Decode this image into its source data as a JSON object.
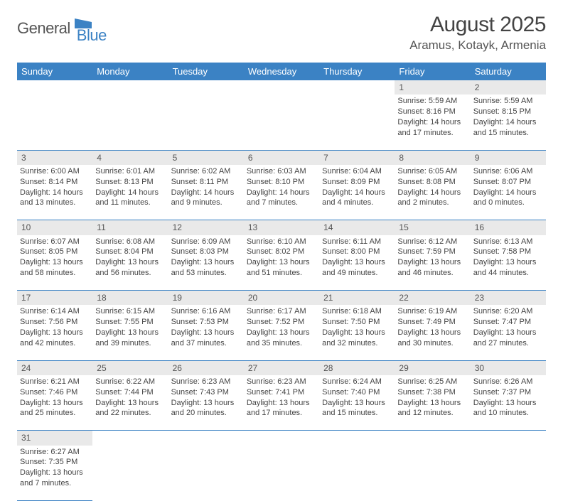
{
  "logo": {
    "general": "General",
    "blue": "Blue"
  },
  "title": "August 2025",
  "location": "Aramus, Kotayk, Armenia",
  "colors": {
    "header_bg": "#3b82c4",
    "header_fg": "#ffffff",
    "daynum_bg": "#e9e9e9",
    "border": "#3b82c4",
    "text": "#444444"
  },
  "weekdays": [
    "Sunday",
    "Monday",
    "Tuesday",
    "Wednesday",
    "Thursday",
    "Friday",
    "Saturday"
  ],
  "weeks": [
    [
      null,
      null,
      null,
      null,
      null,
      {
        "n": "1",
        "sr": "Sunrise: 5:59 AM",
        "ss": "Sunset: 8:16 PM",
        "d1": "Daylight: 14 hours",
        "d2": "and 17 minutes."
      },
      {
        "n": "2",
        "sr": "Sunrise: 5:59 AM",
        "ss": "Sunset: 8:15 PM",
        "d1": "Daylight: 14 hours",
        "d2": "and 15 minutes."
      }
    ],
    [
      {
        "n": "3",
        "sr": "Sunrise: 6:00 AM",
        "ss": "Sunset: 8:14 PM",
        "d1": "Daylight: 14 hours",
        "d2": "and 13 minutes."
      },
      {
        "n": "4",
        "sr": "Sunrise: 6:01 AM",
        "ss": "Sunset: 8:13 PM",
        "d1": "Daylight: 14 hours",
        "d2": "and 11 minutes."
      },
      {
        "n": "5",
        "sr": "Sunrise: 6:02 AM",
        "ss": "Sunset: 8:11 PM",
        "d1": "Daylight: 14 hours",
        "d2": "and 9 minutes."
      },
      {
        "n": "6",
        "sr": "Sunrise: 6:03 AM",
        "ss": "Sunset: 8:10 PM",
        "d1": "Daylight: 14 hours",
        "d2": "and 7 minutes."
      },
      {
        "n": "7",
        "sr": "Sunrise: 6:04 AM",
        "ss": "Sunset: 8:09 PM",
        "d1": "Daylight: 14 hours",
        "d2": "and 4 minutes."
      },
      {
        "n": "8",
        "sr": "Sunrise: 6:05 AM",
        "ss": "Sunset: 8:08 PM",
        "d1": "Daylight: 14 hours",
        "d2": "and 2 minutes."
      },
      {
        "n": "9",
        "sr": "Sunrise: 6:06 AM",
        "ss": "Sunset: 8:07 PM",
        "d1": "Daylight: 14 hours",
        "d2": "and 0 minutes."
      }
    ],
    [
      {
        "n": "10",
        "sr": "Sunrise: 6:07 AM",
        "ss": "Sunset: 8:05 PM",
        "d1": "Daylight: 13 hours",
        "d2": "and 58 minutes."
      },
      {
        "n": "11",
        "sr": "Sunrise: 6:08 AM",
        "ss": "Sunset: 8:04 PM",
        "d1": "Daylight: 13 hours",
        "d2": "and 56 minutes."
      },
      {
        "n": "12",
        "sr": "Sunrise: 6:09 AM",
        "ss": "Sunset: 8:03 PM",
        "d1": "Daylight: 13 hours",
        "d2": "and 53 minutes."
      },
      {
        "n": "13",
        "sr": "Sunrise: 6:10 AM",
        "ss": "Sunset: 8:02 PM",
        "d1": "Daylight: 13 hours",
        "d2": "and 51 minutes."
      },
      {
        "n": "14",
        "sr": "Sunrise: 6:11 AM",
        "ss": "Sunset: 8:00 PM",
        "d1": "Daylight: 13 hours",
        "d2": "and 49 minutes."
      },
      {
        "n": "15",
        "sr": "Sunrise: 6:12 AM",
        "ss": "Sunset: 7:59 PM",
        "d1": "Daylight: 13 hours",
        "d2": "and 46 minutes."
      },
      {
        "n": "16",
        "sr": "Sunrise: 6:13 AM",
        "ss": "Sunset: 7:58 PM",
        "d1": "Daylight: 13 hours",
        "d2": "and 44 minutes."
      }
    ],
    [
      {
        "n": "17",
        "sr": "Sunrise: 6:14 AM",
        "ss": "Sunset: 7:56 PM",
        "d1": "Daylight: 13 hours",
        "d2": "and 42 minutes."
      },
      {
        "n": "18",
        "sr": "Sunrise: 6:15 AM",
        "ss": "Sunset: 7:55 PM",
        "d1": "Daylight: 13 hours",
        "d2": "and 39 minutes."
      },
      {
        "n": "19",
        "sr": "Sunrise: 6:16 AM",
        "ss": "Sunset: 7:53 PM",
        "d1": "Daylight: 13 hours",
        "d2": "and 37 minutes."
      },
      {
        "n": "20",
        "sr": "Sunrise: 6:17 AM",
        "ss": "Sunset: 7:52 PM",
        "d1": "Daylight: 13 hours",
        "d2": "and 35 minutes."
      },
      {
        "n": "21",
        "sr": "Sunrise: 6:18 AM",
        "ss": "Sunset: 7:50 PM",
        "d1": "Daylight: 13 hours",
        "d2": "and 32 minutes."
      },
      {
        "n": "22",
        "sr": "Sunrise: 6:19 AM",
        "ss": "Sunset: 7:49 PM",
        "d1": "Daylight: 13 hours",
        "d2": "and 30 minutes."
      },
      {
        "n": "23",
        "sr": "Sunrise: 6:20 AM",
        "ss": "Sunset: 7:47 PM",
        "d1": "Daylight: 13 hours",
        "d2": "and 27 minutes."
      }
    ],
    [
      {
        "n": "24",
        "sr": "Sunrise: 6:21 AM",
        "ss": "Sunset: 7:46 PM",
        "d1": "Daylight: 13 hours",
        "d2": "and 25 minutes."
      },
      {
        "n": "25",
        "sr": "Sunrise: 6:22 AM",
        "ss": "Sunset: 7:44 PM",
        "d1": "Daylight: 13 hours",
        "d2": "and 22 minutes."
      },
      {
        "n": "26",
        "sr": "Sunrise: 6:23 AM",
        "ss": "Sunset: 7:43 PM",
        "d1": "Daylight: 13 hours",
        "d2": "and 20 minutes."
      },
      {
        "n": "27",
        "sr": "Sunrise: 6:23 AM",
        "ss": "Sunset: 7:41 PM",
        "d1": "Daylight: 13 hours",
        "d2": "and 17 minutes."
      },
      {
        "n": "28",
        "sr": "Sunrise: 6:24 AM",
        "ss": "Sunset: 7:40 PM",
        "d1": "Daylight: 13 hours",
        "d2": "and 15 minutes."
      },
      {
        "n": "29",
        "sr": "Sunrise: 6:25 AM",
        "ss": "Sunset: 7:38 PM",
        "d1": "Daylight: 13 hours",
        "d2": "and 12 minutes."
      },
      {
        "n": "30",
        "sr": "Sunrise: 6:26 AM",
        "ss": "Sunset: 7:37 PM",
        "d1": "Daylight: 13 hours",
        "d2": "and 10 minutes."
      }
    ],
    [
      {
        "n": "31",
        "sr": "Sunrise: 6:27 AM",
        "ss": "Sunset: 7:35 PM",
        "d1": "Daylight: 13 hours",
        "d2": "and 7 minutes."
      },
      null,
      null,
      null,
      null,
      null,
      null
    ]
  ]
}
